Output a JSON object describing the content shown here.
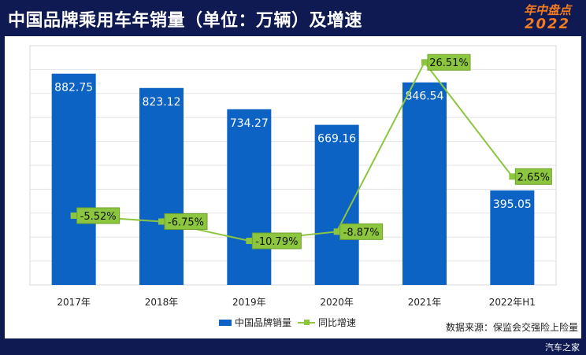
{
  "header": {
    "title": "中国品牌乘用车年销量（单位：万辆）及增速",
    "badge_line1": "年中盘点",
    "badge_line2": "2022"
  },
  "source_note": "数据来源：保监会交强险上险量",
  "watermark": "汽车之家",
  "colors": {
    "background": "#0f1a52",
    "bar": "#0d63c4",
    "line": "#8cc63f",
    "label_box": "#8cc63f"
  },
  "chart_data": {
    "type": "bar",
    "title": "中国品牌乘用车年销量（单位：万辆）及增速",
    "categories": [
      "2017年",
      "2018年",
      "2019年",
      "2020年",
      "2021年",
      "2022年H1"
    ],
    "series": [
      {
        "name": "中国品牌销量",
        "kind": "bar",
        "values": [
          882.75,
          823.12,
          734.27,
          669.16,
          846.54,
          395.05
        ],
        "labels": [
          "882.75",
          "823.12",
          "734.27",
          "669.16",
          "846.54",
          "395.05"
        ]
      },
      {
        "name": "同比增速",
        "kind": "line",
        "values": [
          -5.52,
          -6.75,
          -10.79,
          -8.87,
          26.51,
          2.65
        ],
        "labels": [
          "-5.52%",
          "-6.75%",
          "-10.79%",
          "-8.87%",
          "26.51%",
          "2.65%"
        ]
      }
    ],
    "ylim": [
      0,
      1000
    ],
    "y2lim": [
      -20,
      30
    ],
    "grid": true,
    "legend_position": "bottom-center"
  }
}
